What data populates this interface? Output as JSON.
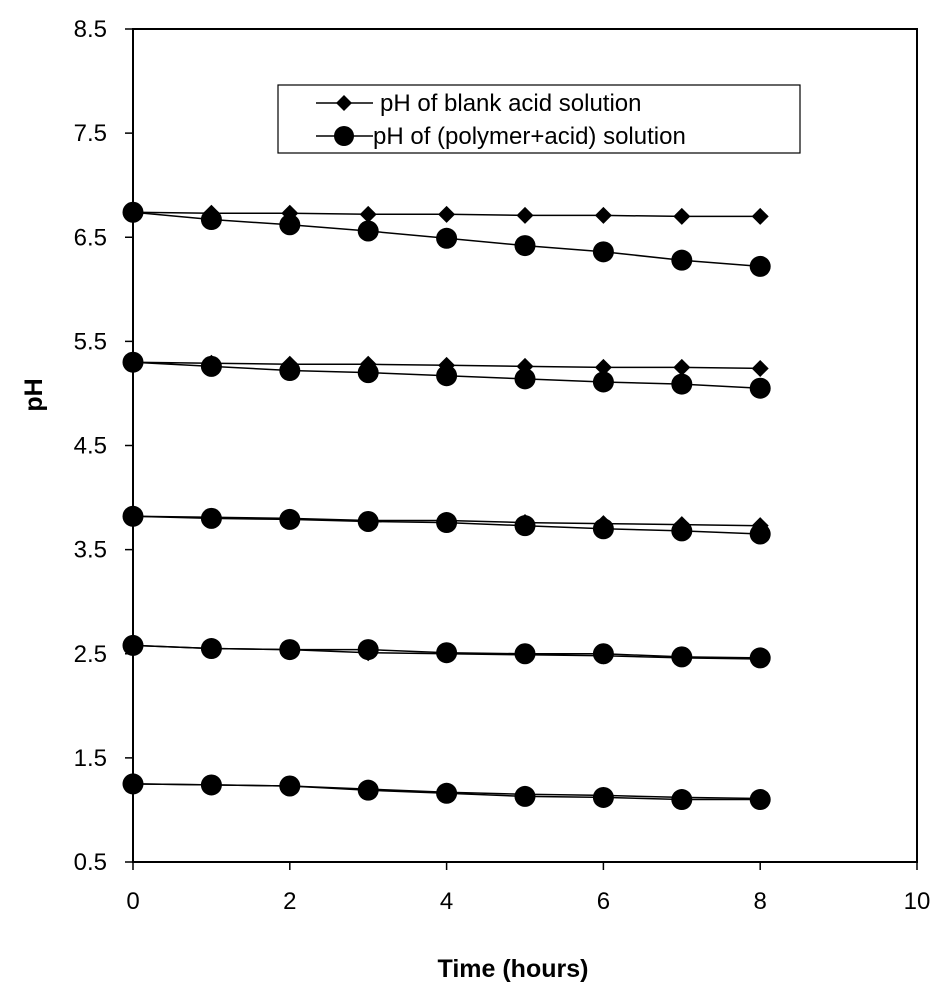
{
  "chart_data": {
    "type": "line",
    "title": "",
    "xlabel": "Time (hours)",
    "ylabel": "pH",
    "xlim": [
      0,
      10
    ],
    "ylim": [
      0.5,
      8.5
    ],
    "x_ticks": [
      "0",
      "2",
      "4",
      "6",
      "8",
      "10"
    ],
    "y_ticks": [
      "0.5",
      "1.5",
      "2.5",
      "3.5",
      "4.5",
      "5.5",
      "6.5",
      "7.5",
      "8.5"
    ],
    "grid": false,
    "legend_position": "top-center",
    "x": [
      0,
      1,
      2,
      3,
      4,
      5,
      6,
      7,
      8
    ],
    "series": [
      {
        "name": "pH of blank acid solution",
        "marker": "diamond",
        "color": "#000000",
        "groups": [
          [
            6.74,
            6.73,
            6.73,
            6.72,
            6.72,
            6.71,
            6.71,
            6.7,
            6.7
          ],
          [
            5.3,
            5.29,
            5.28,
            5.28,
            5.27,
            5.26,
            5.25,
            5.25,
            5.24
          ],
          [
            3.82,
            3.81,
            3.8,
            3.78,
            3.78,
            3.76,
            3.75,
            3.74,
            3.73
          ],
          [
            2.58,
            2.55,
            2.54,
            2.51,
            2.5,
            2.49,
            2.48,
            2.46,
            2.45
          ],
          [
            1.25,
            1.24,
            1.23,
            1.2,
            1.17,
            1.15,
            1.14,
            1.12,
            1.11
          ]
        ]
      },
      {
        "name": "pH of (polymer+acid) solution",
        "marker": "circle",
        "color": "#000000",
        "groups": [
          [
            6.74,
            6.67,
            6.62,
            6.56,
            6.49,
            6.42,
            6.36,
            6.28,
            6.22
          ],
          [
            5.3,
            5.26,
            5.22,
            5.2,
            5.17,
            5.14,
            5.11,
            5.09,
            5.05
          ],
          [
            3.82,
            3.8,
            3.79,
            3.77,
            3.76,
            3.73,
            3.7,
            3.68,
            3.65
          ],
          [
            2.58,
            2.55,
            2.54,
            2.54,
            2.51,
            2.5,
            2.5,
            2.47,
            2.46
          ],
          [
            1.25,
            1.24,
            1.23,
            1.19,
            1.16,
            1.13,
            1.12,
            1.1,
            1.1
          ]
        ]
      }
    ]
  }
}
